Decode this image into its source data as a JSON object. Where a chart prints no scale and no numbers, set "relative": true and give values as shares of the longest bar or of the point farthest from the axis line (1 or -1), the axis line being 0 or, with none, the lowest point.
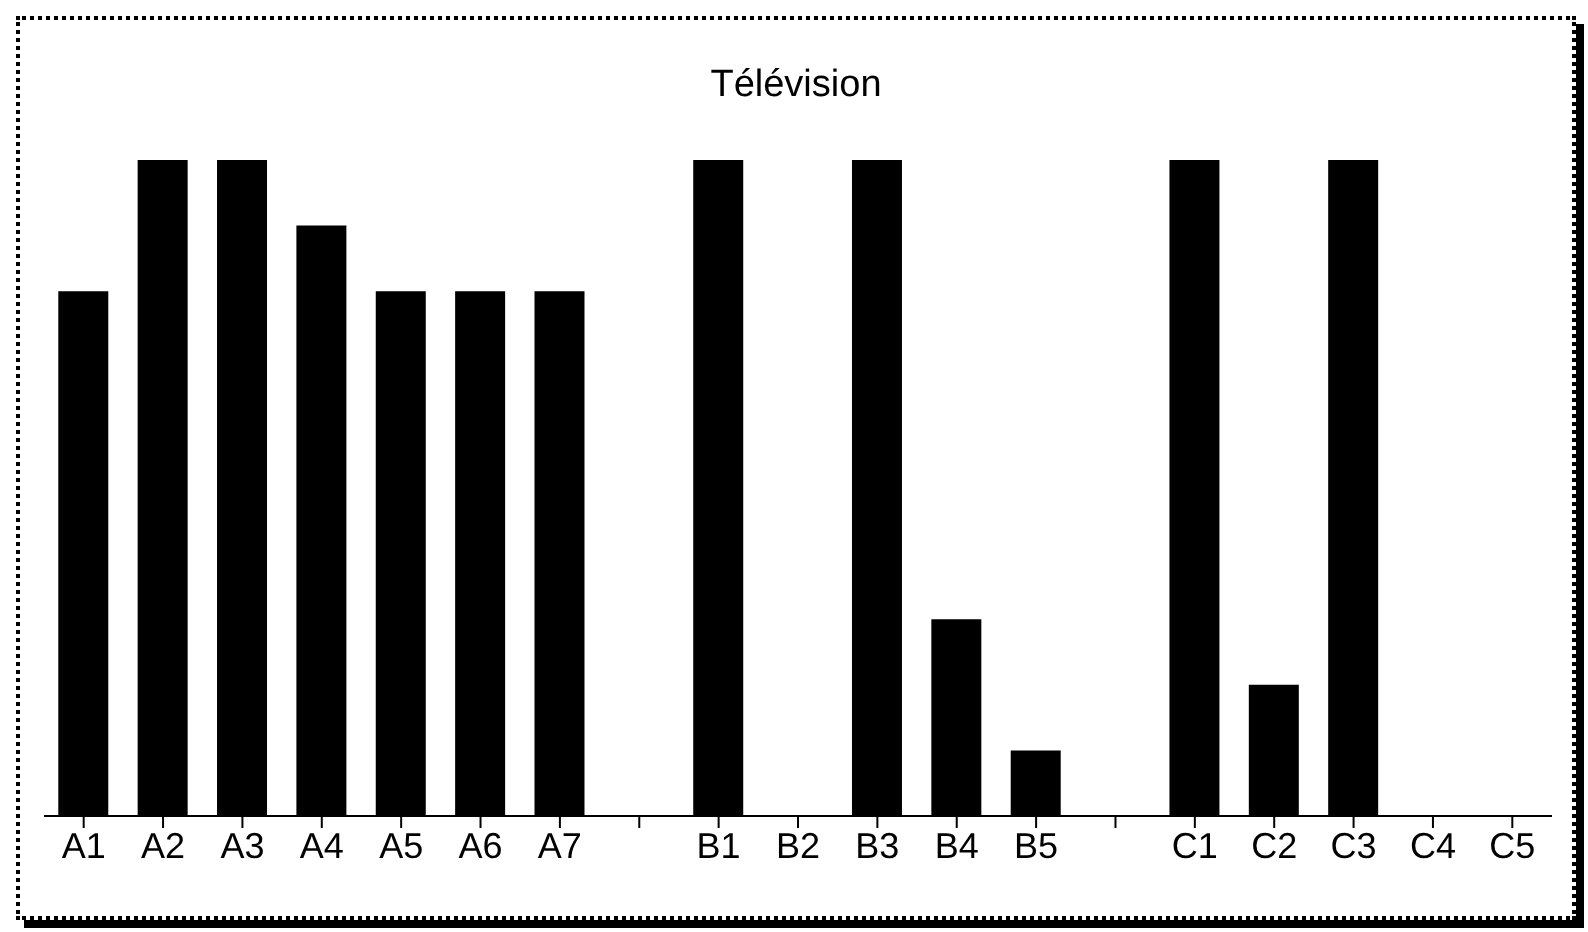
{
  "chart_data": {
    "type": "bar",
    "title": "Télévision",
    "relative": true,
    "color": "#000000",
    "categories": [
      "A1",
      "A2",
      "A3",
      "A4",
      "A5",
      "A6",
      "A7",
      null,
      "B1",
      "B2",
      "B3",
      "B4",
      "B5",
      null,
      "C1",
      "C2",
      "C3",
      "C4",
      "C5"
    ],
    "values": [
      0.8,
      1,
      1,
      0.9,
      0.8,
      0.8,
      0.8,
      null,
      1,
      0,
      1,
      0.3,
      0.1,
      null,
      1,
      0.2,
      1,
      0,
      0
    ],
    "grid": false,
    "legend": false
  }
}
